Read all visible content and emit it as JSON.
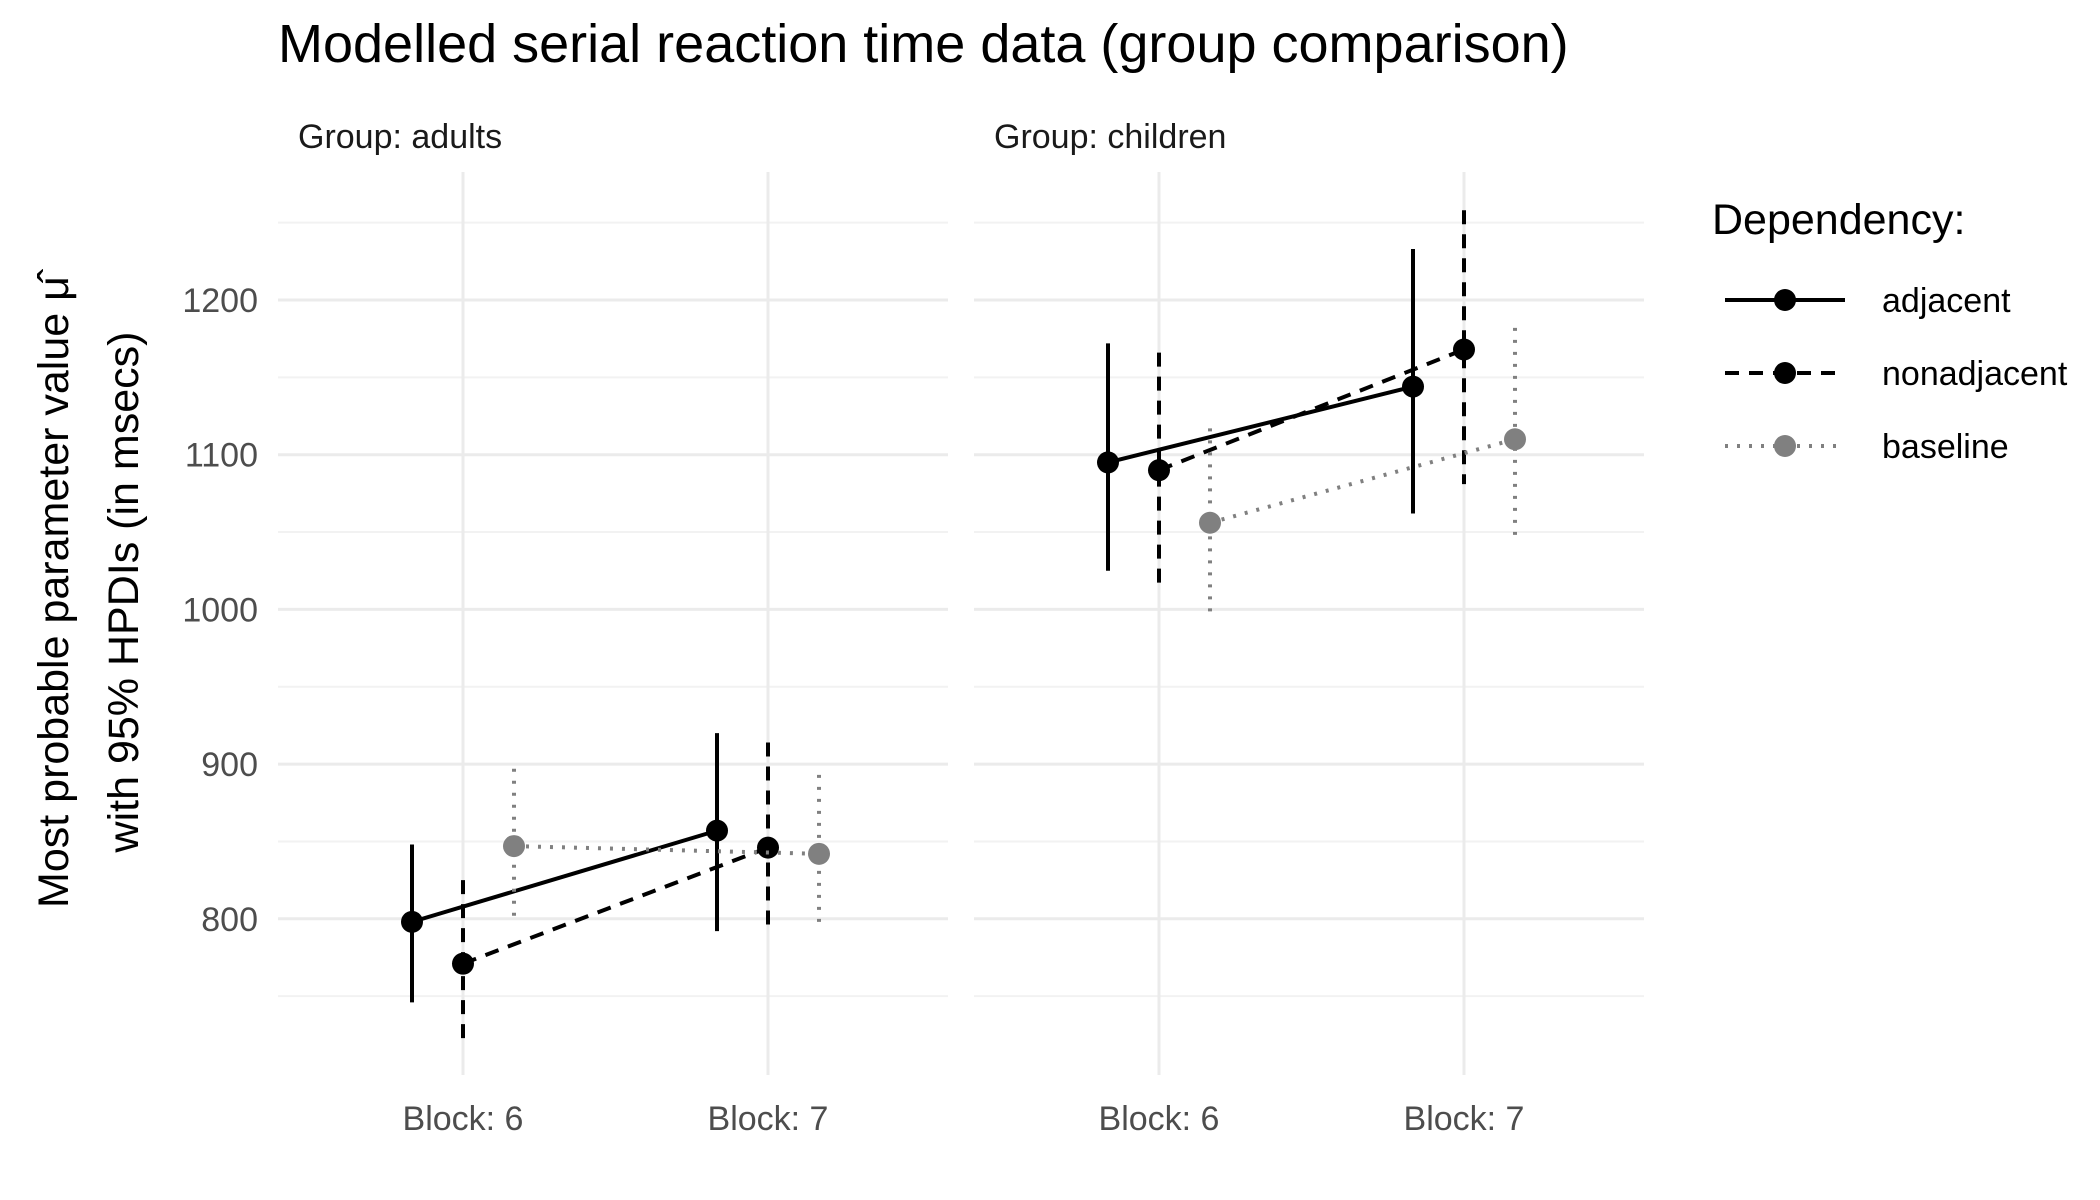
{
  "chart_data": {
    "type": "line",
    "title": "Modelled serial reaction time data (group comparison)",
    "ylabel_line1": "Most probable parameter value",
    "ylabel_symbol": "μ̂",
    "ylabel_line2": "with 95% HPDIs (in msecs)",
    "xlabel": "",
    "categories": [
      "Block: 6",
      "Block: 7"
    ],
    "ylim": [
      700,
      1280
    ],
    "yticks": [
      800,
      900,
      1000,
      1100,
      1200
    ],
    "grid": true,
    "legend": {
      "title": "Dependency:",
      "position": "right",
      "entries": [
        "adjacent",
        "nonadjacent",
        "baseline"
      ]
    },
    "facets": [
      {
        "label": "Group: adults",
        "series": [
          {
            "name": "adjacent",
            "color": "#000000",
            "linetype": "solid",
            "values": [
              798,
              857
            ],
            "lower": [
              746,
              792
            ],
            "upper": [
              848,
              920
            ]
          },
          {
            "name": "nonadjacent",
            "color": "#000000",
            "linetype": "dashed",
            "values": [
              771,
              846
            ],
            "lower": [
              722,
              790
            ],
            "upper": [
              825,
              914
            ]
          },
          {
            "name": "baseline",
            "color": "#808080",
            "linetype": "dotted",
            "values": [
              847,
              842
            ],
            "lower": [
              799,
              795
            ],
            "upper": [
              897,
              893
            ]
          }
        ]
      },
      {
        "label": "Group: children",
        "series": [
          {
            "name": "adjacent",
            "color": "#000000",
            "linetype": "solid",
            "values": [
              1095,
              1144
            ],
            "lower": [
              1025,
              1062
            ],
            "upper": [
              1172,
              1233
            ]
          },
          {
            "name": "nonadjacent",
            "color": "#000000",
            "linetype": "dashed",
            "values": [
              1090,
              1168
            ],
            "lower": [
              1017,
              1081
            ],
            "upper": [
              1166,
              1258
            ]
          },
          {
            "name": "baseline",
            "color": "#808080",
            "linetype": "dotted",
            "values": [
              1056,
              1110
            ],
            "lower": [
              996,
              1048
            ],
            "upper": [
              1117,
              1182
            ]
          }
        ]
      }
    ]
  }
}
